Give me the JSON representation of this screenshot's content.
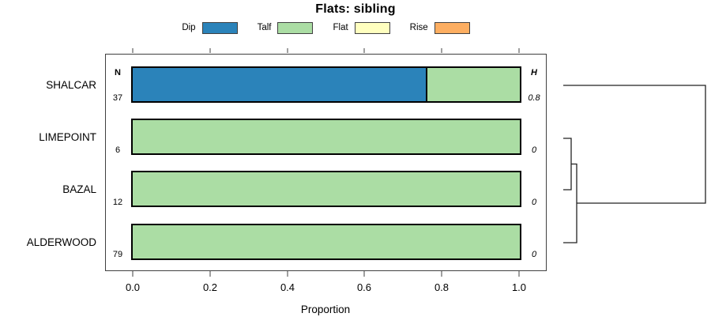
{
  "chart_data": {
    "type": "bar",
    "subtype": "horizontal-stacked-proportion-with-dendrogram",
    "title": "Flats: sibling",
    "xlabel": "Proportion",
    "xlim": [
      0,
      1
    ],
    "xticks": [
      "0.0",
      "0.2",
      "0.4",
      "0.6",
      "0.8",
      "1.0"
    ],
    "grid": false,
    "legend_position": "top",
    "n_header": "N",
    "h_header": "H",
    "categories": [
      "SHALCAR",
      "LIMEPOINT",
      "BAZAL",
      "ALDERWOOD"
    ],
    "n": [
      37,
      6,
      12,
      79
    ],
    "H": [
      "0.8",
      "0",
      "0",
      "0"
    ],
    "series": [
      {
        "name": "Dip",
        "color": "#2B83BA",
        "values": [
          0.757,
          0,
          0,
          0
        ]
      },
      {
        "name": "Talf",
        "color": "#ABDDA4",
        "values": [
          0.243,
          1,
          1,
          1
        ]
      },
      {
        "name": "Flat",
        "color": "#FFFFBF",
        "values": [
          0,
          0,
          0,
          0
        ]
      },
      {
        "name": "Rise",
        "color": "#FDAE61",
        "values": [
          0,
          0,
          0,
          0
        ]
      }
    ],
    "dendrogram": {
      "present": true,
      "side": "right",
      "merges": [
        [
          "LIMEPOINT",
          "BAZAL"
        ],
        [
          "(LIMEPOINT,BAZAL)",
          "ALDERWOOD"
        ],
        [
          "SHALCAR",
          "(LIMEPOINT,BAZAL,ALDERWOOD)"
        ]
      ]
    }
  }
}
